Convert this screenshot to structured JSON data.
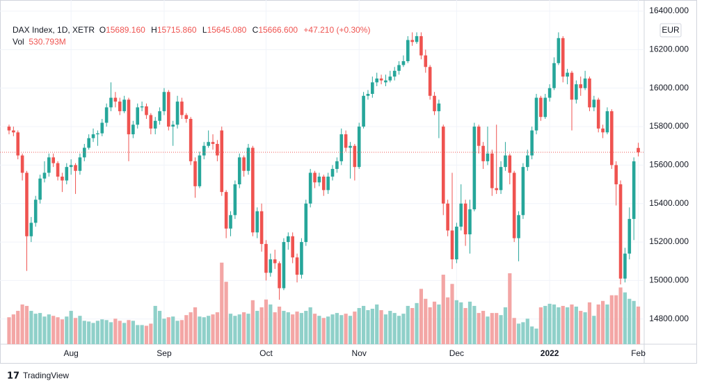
{
  "chart_data": {
    "type": "candlestick",
    "header": {
      "symbol": "DAX Index, 1D, XETR",
      "ohlc": [
        {
          "label": "O",
          "value": "15689.160"
        },
        {
          "label": "H",
          "value": "15715.860"
        },
        {
          "label": "L",
          "value": "15645.080"
        },
        {
          "label": "C",
          "value": "15666.600"
        }
      ],
      "change": "+47.210 (+0.30%)",
      "volume_label": "Vol",
      "volume": "530.793M"
    },
    "currency": "EUR",
    "watermark": "TradingView",
    "up_color": "#26a69a",
    "down_color": "#ef5350",
    "volume_up_color": "#8fd0c9",
    "volume_down_color": "#f3a6a5",
    "grid": true,
    "ylim": [
      14669,
      16458
    ],
    "yticks": [
      {
        "value": 14800,
        "label": "14800.000"
      },
      {
        "value": 15000,
        "label": "15000.000"
      },
      {
        "value": 15200,
        "label": "15200.000"
      },
      {
        "value": 15400,
        "label": "15400.000"
      },
      {
        "value": 15600,
        "label": "15600.000"
      },
      {
        "value": 15800,
        "label": "15800.000"
      },
      {
        "value": 16000,
        "label": "16000.000"
      },
      {
        "value": 16200,
        "label": "16200.000"
      },
      {
        "value": 16400,
        "label": "16400.000"
      }
    ],
    "xticks": [
      {
        "value": 14,
        "label": "Aug"
      },
      {
        "value": 35,
        "label": "Sep"
      },
      {
        "value": 58,
        "label": "Oct"
      },
      {
        "value": 79,
        "label": "Nov"
      },
      {
        "value": 101,
        "label": "Dec"
      },
      {
        "value": 122,
        "label": "2022"
      },
      {
        "value": 142,
        "label": "Feb"
      }
    ],
    "open": [
      15800,
      15780,
      15770,
      15650,
      15560,
      15230,
      15300,
      15420,
      15530,
      15560,
      15640,
      15610,
      15540,
      15520,
      15590,
      15600,
      15570,
      15640,
      15690,
      15740,
      15760,
      15765,
      15820,
      15900,
      15950,
      15930,
      15880,
      15940,
      15760,
      15810,
      15900,
      15905,
      15860,
      15790,
      15830,
      15880,
      15980,
      15800,
      15810,
      15930,
      15860,
      15840,
      15620,
      15490,
      15650,
      15700,
      15720,
      15710,
      15780,
      15460,
      15270,
      15340,
      15500,
      15640,
      15570,
      15690,
      15250,
      15360,
      15190,
      15040,
      15110,
      15090,
      14960,
      15200,
      15230,
      15120,
      15030,
      15200,
      15400,
      15560,
      15510,
      15540,
      15470,
      15540,
      15580,
      15620,
      15760,
      15690,
      15700,
      15590,
      15800,
      15960,
      15970,
      16030,
      16050,
      16030,
      16040,
      16060,
      16090,
      16120,
      16140,
      16250,
      16240,
      16270,
      16170,
      16110,
      15960,
      15880,
      15800,
      15400,
      15260,
      15110,
      15280,
      15400,
      15240,
      15370,
      15800,
      15700,
      15620,
      15660,
      15480,
      15470,
      15590,
      15650,
      15560,
      15220,
      15340,
      15590,
      15650,
      15780,
      15950,
      15850,
      15950,
      16000,
      16130,
      16260,
      16060,
      16080,
      15940,
      16020,
      16000,
      16050,
      15900,
      15940,
      15790,
      15770,
      15880,
      15600,
      15500,
      15010,
      15140,
      15320,
      15689.16
    ],
    "high": [
      15810,
      15800,
      15780,
      15660,
      15570,
      15330,
      15440,
      15550,
      15620,
      15660,
      15660,
      15620,
      15560,
      15610,
      15630,
      15610,
      15660,
      15710,
      15760,
      15790,
      15780,
      15840,
      15920,
      16030,
      15980,
      15950,
      15960,
      15950,
      15830,
      15920,
      15930,
      15920,
      15870,
      15850,
      15900,
      16000,
      15990,
      15830,
      15960,
      15950,
      15870,
      15850,
      15640,
      15670,
      15720,
      15780,
      15760,
      15730,
      15800,
      15470,
      15360,
      15520,
      15660,
      15650,
      15710,
      15700,
      15380,
      15400,
      15210,
      15140,
      15160,
      15100,
      15220,
      15250,
      15250,
      15140,
      15220,
      15420,
      15580,
      15570,
      15560,
      15550,
      15560,
      15600,
      15640,
      15790,
      15780,
      15720,
      15710,
      15820,
      15980,
      15990,
      16060,
      16080,
      16070,
      16070,
      16090,
      16110,
      16140,
      16170,
      16270,
      16290,
      16290,
      16290,
      16200,
      16120,
      15980,
      15940,
      15810,
      15420,
      15560,
      15300,
      15500,
      15420,
      15420,
      15820,
      15810,
      15720,
      15800,
      15680,
      15810,
      15620,
      15720,
      15660,
      15570,
      15360,
      15610,
      15680,
      15800,
      15970,
      15960,
      15970,
      16020,
      16160,
      16290,
      16270,
      16100,
      16090,
      16040,
      16060,
      16090,
      16060,
      15960,
      15950,
      15810,
      15900,
      15890,
      15620,
      15520,
      15170,
      15380,
      15640,
      15715.86
    ],
    "low": [
      15760,
      15750,
      15630,
      15520,
      15050,
      15200,
      15280,
      15400,
      15510,
      15540,
      15590,
      15520,
      15460,
      15500,
      15550,
      15450,
      15550,
      15620,
      15680,
      15720,
      15700,
      15750,
      15800,
      15880,
      15900,
      15860,
      15870,
      15620,
      15740,
      15790,
      15880,
      15840,
      15760,
      15760,
      15810,
      15860,
      15780,
      15700,
      15790,
      15840,
      15820,
      15600,
      15430,
      15480,
      15630,
      15690,
      15680,
      15620,
      15440,
      15220,
      15230,
      15320,
      15480,
      15540,
      15550,
      15230,
      15220,
      15150,
      15000,
      15020,
      15060,
      14900,
      14950,
      15160,
      15090,
      14990,
      15010,
      15180,
      15380,
      15480,
      15490,
      15440,
      15450,
      15520,
      15560,
      15600,
      15670,
      15530,
      15520,
      15580,
      15790,
      15940,
      15950,
      16010,
      16020,
      16010,
      16030,
      16040,
      16070,
      16110,
      16130,
      16220,
      16230,
      16150,
      16080,
      15940,
      15860,
      15740,
      15340,
      15230,
      15060,
      15090,
      15260,
      15180,
      15140,
      15360,
      15660,
      15580,
      15600,
      15440,
      15450,
      15450,
      15570,
      15500,
      15200,
      15100,
      15320,
      15570,
      15630,
      15760,
      15830,
      15840,
      15930,
      15990,
      16120,
      16030,
      16020,
      15780,
      15920,
      15960,
      15990,
      15880,
      15880,
      15770,
      15740,
      15760,
      15580,
      15390,
      14980,
      14990,
      15110,
      15210,
      15645.08
    ],
    "close": [
      15780,
      15770,
      15650,
      15560,
      15230,
      15300,
      15420,
      15530,
      15560,
      15640,
      15610,
      15540,
      15520,
      15590,
      15600,
      15570,
      15640,
      15690,
      15740,
      15760,
      15765,
      15820,
      15900,
      15950,
      15930,
      15880,
      15940,
      15760,
      15810,
      15900,
      15905,
      15860,
      15790,
      15830,
      15880,
      15980,
      15800,
      15810,
      15930,
      15860,
      15840,
      15620,
      15490,
      15650,
      15700,
      15720,
      15710,
      15650,
      15460,
      15270,
      15340,
      15500,
      15640,
      15570,
      15690,
      15250,
      15360,
      15190,
      15040,
      15110,
      15090,
      14960,
      15200,
      15230,
      15120,
      15030,
      15200,
      15400,
      15560,
      15510,
      15540,
      15470,
      15540,
      15580,
      15620,
      15760,
      15690,
      15700,
      15590,
      15800,
      15960,
      15970,
      16030,
      16050,
      16040,
      16040,
      16060,
      16090,
      16120,
      16140,
      16250,
      16240,
      16270,
      16170,
      16110,
      15960,
      15880,
      15920,
      15400,
      15260,
      15110,
      15280,
      15400,
      15240,
      15370,
      15800,
      15700,
      15620,
      15660,
      15480,
      15470,
      15590,
      15650,
      15560,
      15220,
      15340,
      15590,
      15650,
      15780,
      15950,
      15850,
      15950,
      16000,
      16130,
      16260,
      16060,
      16080,
      15940,
      16020,
      16000,
      16050,
      15900,
      15940,
      15790,
      15770,
      15880,
      15600,
      15500,
      15010,
      15140,
      15320,
      15619.39,
      15666.6
    ],
    "volume": [
      380,
      420,
      470,
      560,
      540,
      470,
      430,
      440,
      390,
      420,
      400,
      380,
      350,
      390,
      470,
      370,
      400,
      330,
      320,
      300,
      330,
      350,
      340,
      310,
      360,
      330,
      300,
      340,
      330,
      270,
      270,
      260,
      290,
      540,
      470,
      360,
      380,
      390,
      330,
      340,
      410,
      450,
      520,
      390,
      380,
      400,
      420,
      450,
      1150,
      880,
      430,
      400,
      420,
      450,
      430,
      620,
      470,
      520,
      630,
      560,
      450,
      530,
      470,
      450,
      420,
      460,
      440,
      470,
      520,
      430,
      400,
      370,
      390,
      420,
      440,
      410,
      430,
      400,
      460,
      510,
      540,
      480,
      500,
      560,
      480,
      420,
      470,
      440,
      400,
      430,
      540,
      510,
      580,
      780,
      640,
      520,
      600,
      560,
      980,
      660,
      850,
      620,
      590,
      510,
      600,
      540,
      440,
      470,
      390,
      440,
      440,
      410,
      520,
      1000,
      370,
      290,
      310,
      360,
      250,
      220,
      520,
      540,
      570,
      560,
      520,
      540,
      520,
      560,
      530,
      470,
      450,
      590,
      400,
      560,
      610,
      560,
      690,
      690,
      800,
      730,
      640,
      610,
      530.793
    ]
  }
}
